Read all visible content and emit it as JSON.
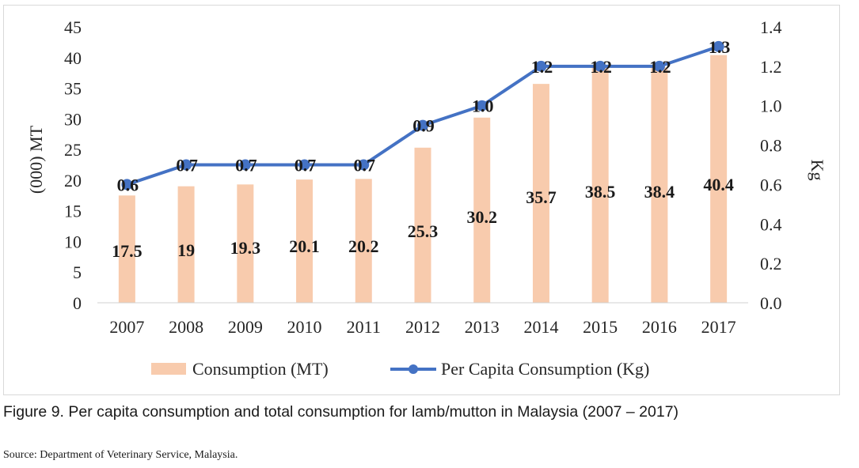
{
  "chart_data": {
    "type": "bar",
    "categories": [
      "2007",
      "2008",
      "2009",
      "2010",
      "2011",
      "2012",
      "2013",
      "2014",
      "2015",
      "2016",
      "2017"
    ],
    "series": [
      {
        "name": "Consumption (MT)",
        "type": "bar",
        "axis": "left",
        "color": "#f8cbad",
        "values": [
          17.5,
          19,
          19.3,
          20.1,
          20.2,
          25.3,
          30.2,
          35.7,
          38.5,
          38.4,
          40.4
        ],
        "labels": [
          "17.5",
          "19",
          "19.3",
          "20.1",
          "20.2",
          "25.3",
          "30.2",
          "35.7",
          "38.5",
          "38.4",
          "40.4"
        ]
      },
      {
        "name": "Per Capita Consumption (Kg)",
        "type": "line",
        "axis": "right",
        "color": "#4472c4",
        "values": [
          0.6,
          0.7,
          0.7,
          0.7,
          0.7,
          0.9,
          1.0,
          1.2,
          1.2,
          1.2,
          1.3
        ],
        "labels": [
          "0.6",
          "0.7",
          "0.7",
          "0.7",
          "0.7",
          "0.9",
          "1.0",
          "1.2",
          "1.2",
          "1.2",
          "1.3"
        ]
      }
    ],
    "ylabel": "(000) MT",
    "y2label": "Kg",
    "ylim": [
      0,
      45
    ],
    "y2lim": [
      0,
      1.4
    ],
    "yticks": [
      "0",
      "5",
      "10",
      "15",
      "20",
      "25",
      "30",
      "35",
      "40",
      "45"
    ],
    "y2ticks": [
      "0.0",
      "0.2",
      "0.4",
      "0.6",
      "0.8",
      "1.0",
      "1.2",
      "1.4"
    ],
    "grid": false,
    "legend": "bottom"
  },
  "caption": "Figure 9. Per capita consumption and total consumption for lamb/mutton in Malaysia (2007 – 2017)",
  "source": "Source: Department of Veterinary Service, Malaysia."
}
